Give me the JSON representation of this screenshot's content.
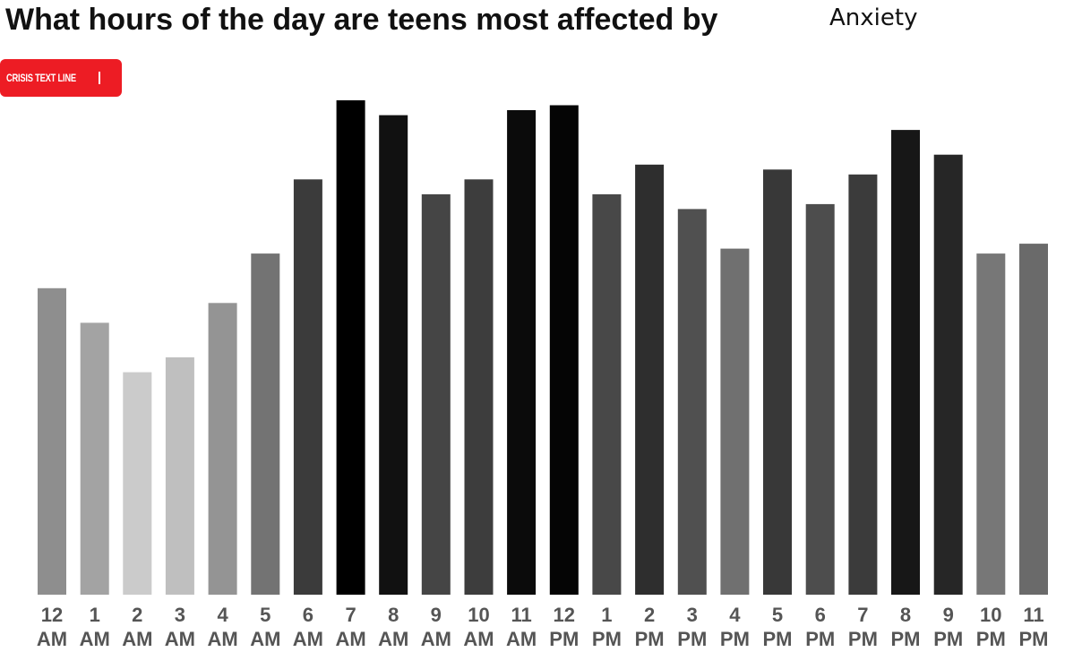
{
  "header": {
    "title": "What hours of the day are teens most affected by",
    "topic_selected": "Anxiety"
  },
  "logo": {
    "text": "CRISIS TEXT LINE"
  },
  "chart_data": {
    "type": "bar",
    "title": "What hours of the day are teens most affected by",
    "categories": [
      [
        "12",
        "AM"
      ],
      [
        "1",
        "AM"
      ],
      [
        "2",
        "AM"
      ],
      [
        "3",
        "AM"
      ],
      [
        "4",
        "AM"
      ],
      [
        "5",
        "AM"
      ],
      [
        "6",
        "AM"
      ],
      [
        "7",
        "AM"
      ],
      [
        "8",
        "AM"
      ],
      [
        "9",
        "AM"
      ],
      [
        "10",
        "AM"
      ],
      [
        "11",
        "AM"
      ],
      [
        "12",
        "PM"
      ],
      [
        "1",
        "PM"
      ],
      [
        "2",
        "PM"
      ],
      [
        "3",
        "PM"
      ],
      [
        "4",
        "PM"
      ],
      [
        "5",
        "PM"
      ],
      [
        "6",
        "PM"
      ],
      [
        "7",
        "PM"
      ],
      [
        "8",
        "PM"
      ],
      [
        "9",
        "PM"
      ],
      [
        "10",
        "PM"
      ],
      [
        "11",
        "PM"
      ]
    ],
    "values": [
      62,
      55,
      45,
      48,
      59,
      69,
      84,
      100,
      97,
      81,
      84,
      98,
      99,
      81,
      87,
      78,
      70,
      86,
      79,
      85,
      94,
      89,
      69,
      71
    ],
    "colors": [
      "#8e8e8e",
      "#a3a3a3",
      "#cbcbcb",
      "#bfbfbf",
      "#949494",
      "#737373",
      "#3b3b3b",
      "#000000",
      "#111111",
      "#454545",
      "#3d3d3d",
      "#0b0b0b",
      "#050505",
      "#484848",
      "#2e2e2e",
      "#505050",
      "#707070",
      "#383838",
      "#4d4d4d",
      "#3b3b3b",
      "#171717",
      "#262626",
      "#777777",
      "#6a6a6a"
    ],
    "xlabel": "",
    "ylabel": "",
    "ylim": [
      0,
      100
    ],
    "grid": false,
    "legend": "none"
  }
}
